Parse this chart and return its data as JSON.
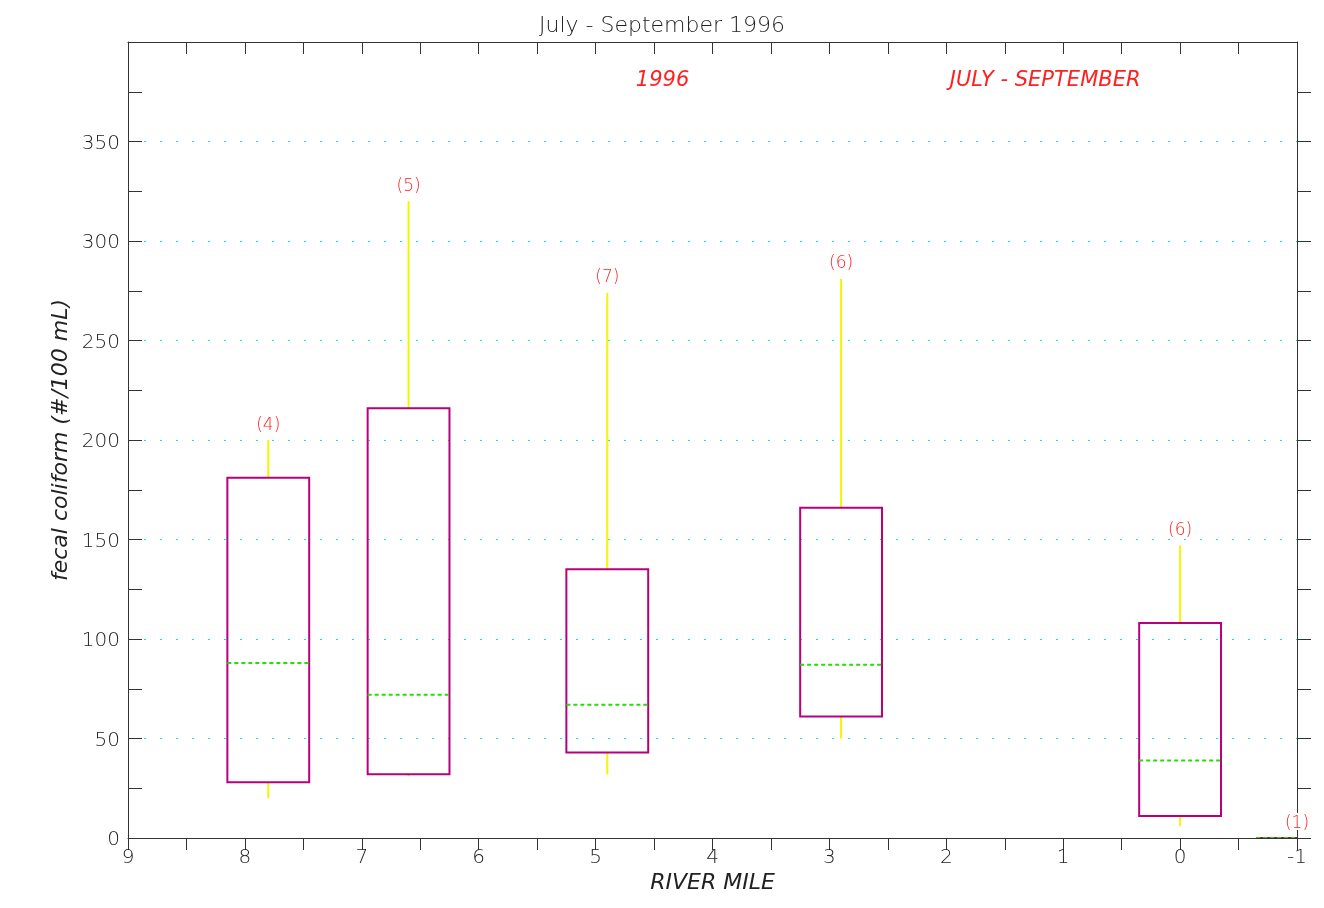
{
  "chart_data": {
    "type": "box",
    "title": "July - September 1996",
    "xlabel": "RIVER MILE",
    "ylabel": "fecal coliform (#/100 mL)",
    "xlim": [
      9,
      -1
    ],
    "xticks": [
      9,
      8,
      7,
      6,
      5,
      4,
      3,
      2,
      1,
      0,
      -1
    ],
    "ylim": [
      0,
      400
    ],
    "yticks": [
      0,
      50,
      100,
      150,
      200,
      250,
      300,
      350
    ],
    "grid": "y",
    "series": [
      {
        "color": "#b8007f",
        "x": [
          7.8,
          6.6,
          4.9,
          2.9,
          0,
          -1
        ],
        "boxes": [
          {
            "low": 20,
            "q1": 28,
            "median": 88,
            "q3": 181,
            "high": 200
          },
          {
            "low": 31,
            "q1": 32,
            "median": 72,
            "q3": 216,
            "high": 320
          },
          {
            "low": 32,
            "q1": 43,
            "median": 67,
            "q3": 135,
            "high": 274
          },
          {
            "low": 50,
            "q1": 61,
            "median": 87,
            "q3": 166,
            "high": 281
          },
          {
            "low": 6,
            "q1": 11,
            "median": 39,
            "q3": 108,
            "high": 147
          },
          {
            "low": 0,
            "q1": 0,
            "median": 0,
            "q3": 0,
            "high": 0
          }
        ]
      }
    ],
    "annotations": [
      "1996",
      "JULY - SEPTEMBER",
      {
        "text": "(4)",
        "x": 7.8,
        "y": 200
      },
      {
        "text": "(5)",
        "x": 6.6,
        "y": 320
      },
      {
        "text": "(7)",
        "x": 4.9,
        "y": 274
      },
      {
        "text": "(6)",
        "x": 2.9,
        "y": 281
      },
      {
        "text": "(6)",
        "x": 0,
        "y": 147
      },
      {
        "text": "(1)",
        "x": -1,
        "y": 0
      }
    ]
  }
}
